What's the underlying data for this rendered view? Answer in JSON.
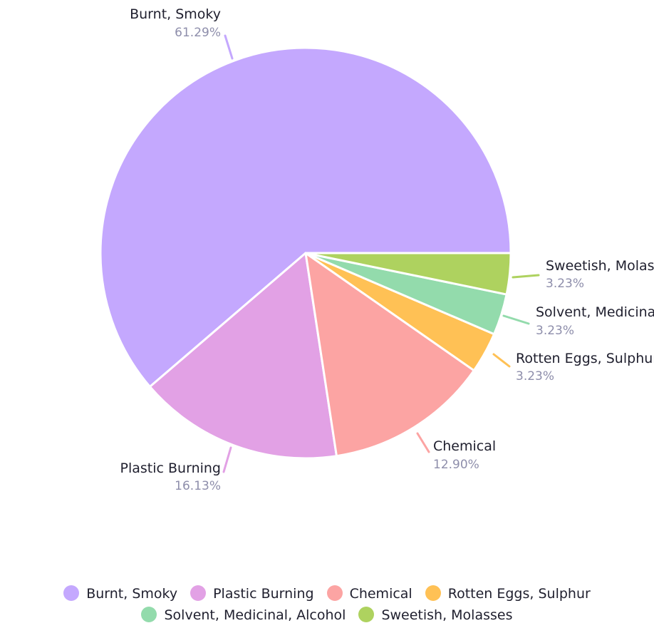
{
  "chart_data": {
    "type": "pie",
    "slices": [
      {
        "name": "Burnt, Smoky",
        "percent_label": "61.29%",
        "value": 61.29,
        "color": "#c4a8fe"
      },
      {
        "name": "Plastic Burning",
        "percent_label": "16.13%",
        "value": 16.13,
        "color": "#e2a1e5"
      },
      {
        "name": "Chemical",
        "percent_label": "12.90%",
        "value": 12.9,
        "color": "#fca4a3"
      },
      {
        "name": "Rotten Eggs, Sulphur",
        "percent_label": "3.23%",
        "value": 3.23,
        "color": "#ffc155"
      },
      {
        "name": "Solvent, Medicinal, Alcohol",
        "percent_label": "3.23%",
        "value": 3.23,
        "color": "#93dbac"
      },
      {
        "name": "Sweetish, Molasses",
        "percent_label": "3.23%",
        "value": 3.23,
        "color": "#aed25f"
      }
    ],
    "legend_position": "bottom"
  }
}
